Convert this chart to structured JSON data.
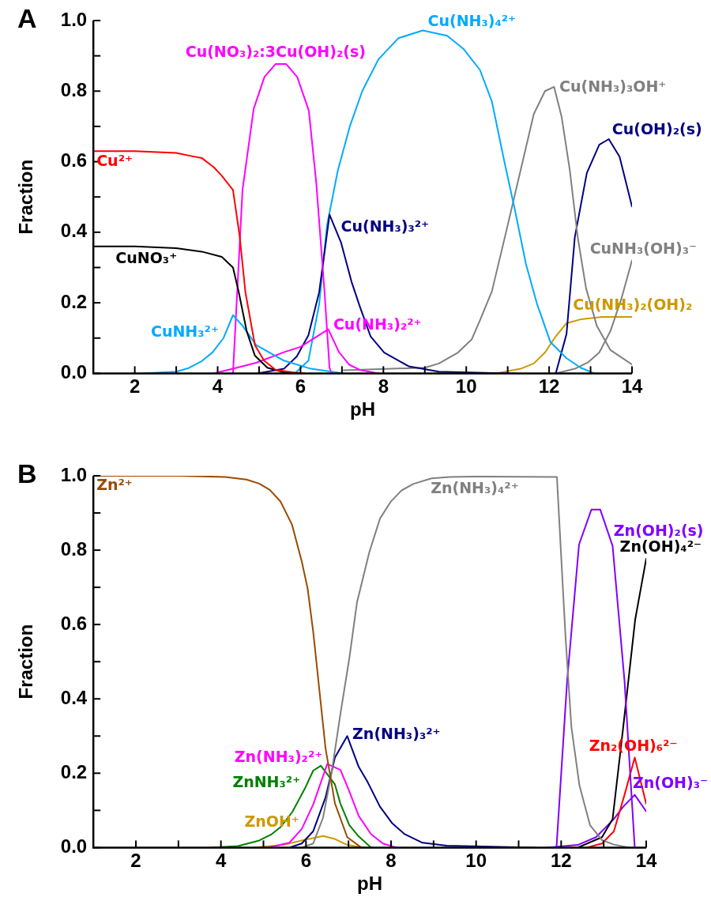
{
  "chart_data": [
    {
      "type": "line",
      "title": "A",
      "xlabel": "pH",
      "ylabel": "Fraction",
      "xlim": [
        1,
        14
      ],
      "ylim": [
        0,
        1
      ],
      "marker": "none",
      "legend": false,
      "xticks": [
        2,
        {
          "value": 3,
          "label": null
        },
        4,
        {
          "value": 5,
          "label": null
        },
        6,
        {
          "value": 7,
          "label": null
        },
        8,
        {
          "value": 9,
          "label": null
        },
        10,
        {
          "value": 11,
          "label": null
        },
        12,
        {
          "value": 13,
          "label": null
        },
        14
      ],
      "yticks": [
        {
          "value": 0,
          "label": "0.0"
        },
        {
          "value": 0.1,
          "label": null
        },
        {
          "value": 0.2,
          "label": "0.2"
        },
        {
          "value": 0.3,
          "label": null
        },
        {
          "value": 0.4,
          "label": "0.4"
        },
        {
          "value": 0.5,
          "label": null
        },
        {
          "value": 0.6,
          "label": "0.6"
        },
        {
          "value": 0.7,
          "label": null
        },
        {
          "value": 0.8,
          "label": "0.8"
        },
        {
          "value": 0.9,
          "label": null
        },
        {
          "value": 1,
          "label": "1.0"
        }
      ],
      "series": [
        {
          "name": "Cu²⁺",
          "color": "#ff0000",
          "x": [
            1,
            2,
            3,
            3.4,
            3.62,
            3.9,
            4.1,
            4.37,
            4.53,
            4.67,
            4.9,
            5.12,
            5.4,
            5.8,
            6.1
          ],
          "values": [
            0.63,
            0.63,
            0.625,
            0.615,
            0.61,
            0.585,
            0.56,
            0.52,
            0.39,
            0.23,
            0.08,
            0.036,
            0.01,
            0.003,
            0
          ]
        },
        {
          "name": "CuNO₃⁺",
          "color": "#000000",
          "x": [
            1,
            2,
            3,
            3.62,
            4.1,
            4.37,
            4.51,
            4.7,
            4.9,
            5.2,
            5.6,
            6.0
          ],
          "values": [
            0.36,
            0.36,
            0.355,
            0.345,
            0.33,
            0.3,
            0.23,
            0.12,
            0.05,
            0.016,
            0.003,
            0
          ]
        },
        {
          "name": "CuNH₃²⁺",
          "color": "#00aaff",
          "x": [
            2.2,
            3,
            3.3,
            3.62,
            3.88,
            4.14,
            4.37,
            4.6,
            4.93,
            5.6,
            6.25,
            7.05
          ],
          "values": [
            0,
            0.005,
            0.015,
            0.035,
            0.06,
            0.1,
            0.165,
            0.135,
            0.08,
            0.036,
            0.013,
            0
          ]
        },
        {
          "name": "Cu(NO₃)₂:3Cu(OH)₂(s)",
          "color": "#ff00ff",
          "x": [
            4.37,
            4.6,
            4.87,
            5.13,
            5.4,
            5.65,
            5.92,
            6.2,
            6.38,
            6.58,
            6.7,
            6.75
          ],
          "values": [
            0,
            0.52,
            0.75,
            0.84,
            0.877,
            0.877,
            0.84,
            0.745,
            0.54,
            0.23,
            0.016,
            0
          ]
        },
        {
          "name": "Cu(NH₃)₂²⁺",
          "color": "#ff00ff",
          "x": [
            3.9,
            4.37,
            4.93,
            5.6,
            6.0,
            6.67,
            6.93,
            7.17,
            7.43,
            7.88
          ],
          "values": [
            0,
            0.013,
            0.03,
            0.06,
            0.075,
            0.125,
            0.06,
            0.025,
            0.01,
            0
          ]
        },
        {
          "name": "Cu(NH₃)₃²⁺",
          "color": "#000080",
          "x": [
            4.96,
            5.6,
            5.91,
            6.19,
            6.45,
            6.7,
            6.98,
            7.23,
            7.43,
            7.69,
            8.02,
            8.61,
            9.34,
            10.98,
            11.18
          ],
          "values": [
            0,
            0.013,
            0.048,
            0.108,
            0.23,
            0.45,
            0.37,
            0.26,
            0.19,
            0.105,
            0.059,
            0.02,
            0.005,
            0,
            0
          ]
        },
        {
          "name": "Cu(NH₃)₄²⁺",
          "color": "#00aaff",
          "x": [
            5.91,
            6.19,
            6.45,
            6.64,
            6.9,
            7.19,
            7.49,
            7.88,
            8.36,
            8.95,
            9.54,
            9.93,
            10.33,
            10.62,
            10.92,
            11.18,
            11.44,
            11.71,
            12.03,
            12.42,
            12.76,
            13.09
          ],
          "values": [
            0.005,
            0.036,
            0.196,
            0.42,
            0.575,
            0.7,
            0.8,
            0.89,
            0.95,
            0.972,
            0.957,
            0.92,
            0.86,
            0.77,
            0.6,
            0.46,
            0.31,
            0.196,
            0.089,
            0.043,
            0.016,
            0
          ]
        },
        {
          "name": "Cu(NH₃)₃OH⁺",
          "color": "#808080",
          "x": [
            7.04,
            9.0,
            9.34,
            9.8,
            10.13,
            10.33,
            10.62,
            10.98,
            11.31,
            11.63,
            11.9,
            12.12,
            12.3,
            12.5,
            12.69,
            12.89,
            13.15,
            13.48,
            14
          ],
          "values": [
            0.009,
            0.016,
            0.028,
            0.059,
            0.096,
            0.15,
            0.233,
            0.41,
            0.575,
            0.735,
            0.8,
            0.812,
            0.728,
            0.575,
            0.386,
            0.242,
            0.135,
            0.066,
            0.025
          ]
        },
        {
          "name": "Cu(OH)₂(s)",
          "color": "#000080",
          "x": [
            12.16,
            12.3,
            12.42,
            12.62,
            12.91,
            13.21,
            13.44,
            13.7,
            14
          ],
          "values": [
            0,
            0.06,
            0.112,
            0.386,
            0.568,
            0.648,
            0.664,
            0.614,
            0.473
          ]
        },
        {
          "name": "CuNH₃(OH)₃⁻",
          "color": "#808080",
          "x": [
            12.16,
            12.62,
            12.95,
            13.21,
            13.48,
            13.74,
            14
          ],
          "values": [
            0,
            0.013,
            0.032,
            0.059,
            0.12,
            0.21,
            0.32
          ]
        },
        {
          "name": "Cu(NH₃)₂(OH)₂",
          "color": "#cc9900",
          "x": [
            10.72,
            11.31,
            11.63,
            11.9,
            12.16,
            12.42,
            12.76,
            13.28,
            14
          ],
          "values": [
            0,
            0.013,
            0.028,
            0.059,
            0.105,
            0.142,
            0.153,
            0.16,
            0.16
          ]
        }
      ]
    },
    {
      "type": "line",
      "title": "B",
      "xlabel": "pH",
      "ylabel": "Fraction",
      "xlim": [
        1,
        14
      ],
      "ylim": [
        0,
        1
      ],
      "marker": "none",
      "legend": false,
      "xticks": [
        2,
        {
          "value": 3,
          "label": null
        },
        4,
        {
          "value": 5,
          "label": null
        },
        6,
        {
          "value": 7,
          "label": null
        },
        8,
        {
          "value": 9,
          "label": null
        },
        10,
        {
          "value": 11,
          "label": null
        },
        12,
        {
          "value": 13,
          "label": null
        },
        14
      ],
      "yticks": [
        {
          "value": 0,
          "label": "0.0"
        },
        {
          "value": 0.1,
          "label": null
        },
        {
          "value": 0.2,
          "label": "0.2"
        },
        {
          "value": 0.3,
          "label": null
        },
        {
          "value": 0.4,
          "label": "0.4"
        },
        {
          "value": 0.5,
          "label": null
        },
        {
          "value": 0.6,
          "label": "0.6"
        },
        {
          "value": 0.7,
          "label": null
        },
        {
          "value": 0.8,
          "label": "0.8"
        },
        {
          "value": 0.9,
          "label": null
        },
        {
          "value": 1,
          "label": "1.0"
        }
      ],
      "series": [
        {
          "name": "Zn²⁺",
          "color": "#994c00",
          "x": [
            1,
            2,
            3,
            4.1,
            4.6,
            4.9,
            5.15,
            5.4,
            5.67,
            5.9,
            6.04,
            6.17,
            6.33,
            6.46,
            6.68,
            6.97,
            7.3
          ],
          "values": [
            1,
            1,
            1,
            0.997,
            0.99,
            0.979,
            0.962,
            0.931,
            0.869,
            0.77,
            0.696,
            0.58,
            0.407,
            0.267,
            0.119,
            0.028,
            0
          ]
        },
        {
          "name": "Zn(NH₃)₄²⁺",
          "color": "#808080",
          "x": [
            5.9,
            6.17,
            6.4,
            6.6,
            6.81,
            7.02,
            7.2,
            7.49,
            7.74,
            7.99,
            8.24,
            8.52,
            8.95,
            9.38,
            10,
            11.9,
            12.1,
            12.24,
            12.43,
            12.68,
            12.96,
            13.24,
            13.6
          ],
          "values": [
            0,
            0.011,
            0.08,
            0.2,
            0.36,
            0.51,
            0.66,
            0.795,
            0.885,
            0.93,
            0.96,
            0.978,
            0.993,
            0.997,
            0.998,
            0.997,
            0.572,
            0.325,
            0.167,
            0.06,
            0.02,
            0.008,
            0
          ]
        },
        {
          "name": "Zn(OH)₂(s)",
          "color": "#8000ff",
          "x": [
            11.67,
            11.89,
            12.14,
            12.42,
            12.71,
            12.92,
            13.21,
            13.49,
            13.73
          ],
          "values": [
            0,
            0,
            0.448,
            0.815,
            0.909,
            0.909,
            0.811,
            0.448,
            0
          ]
        },
        {
          "name": "Zn(OH)₄²⁻",
          "color": "#000000",
          "x": [
            12.39,
            12.96,
            13.21,
            13.46,
            13.74,
            14
          ],
          "values": [
            0,
            0.028,
            0.077,
            0.325,
            0.613,
            0.777
          ]
        },
        {
          "name": "Zn(NH₃)₃²⁺",
          "color": "#000080",
          "x": [
            5.61,
            5.9,
            6.17,
            6.46,
            6.68,
            6.97,
            7.24,
            7.45,
            7.74,
            8.03,
            8.32,
            8.74,
            9.31,
            11.39
          ],
          "values": [
            0,
            0.011,
            0.044,
            0.135,
            0.242,
            0.3,
            0.217,
            0.176,
            0.11,
            0.065,
            0.036,
            0.013,
            0.005,
            0
          ]
        },
        {
          "name": "Zn(NH₃)₂²⁺",
          "color": "#ff00ff",
          "x": [
            5.11,
            5.61,
            5.9,
            6.17,
            6.5,
            6.81,
            7.02,
            7.24,
            7.53,
            7.81,
            8.13
          ],
          "values": [
            0,
            0.013,
            0.05,
            0.116,
            0.225,
            0.209,
            0.151,
            0.085,
            0.036,
            0.011,
            0
          ]
        },
        {
          "name": "ZnNH₃²⁺",
          "color": "#008000",
          "x": [
            3.75,
            4.4,
            4.9,
            5.18,
            5.4,
            5.68,
            5.97,
            6.17,
            6.35,
            6.68,
            6.81,
            7.02,
            7.24,
            7.53
          ],
          "values": [
            0,
            0.004,
            0.019,
            0.035,
            0.055,
            0.096,
            0.158,
            0.207,
            0.22,
            0.17,
            0.118,
            0.06,
            0.03,
            0
          ]
        },
        {
          "name": "ZnOH⁺",
          "color": "#cc9900",
          "x": [
            4.75,
            5.46,
            5.9,
            6.4,
            6.68,
            6.97,
            7.35
          ],
          "values": [
            0,
            0.007,
            0.019,
            0.031,
            0.023,
            0.007,
            0
          ]
        },
        {
          "name": "Zn₂(OH)₆²⁻",
          "color": "#ff0000",
          "x": [
            12.6,
            12.96,
            13.24,
            13.49,
            13.73,
            14
          ],
          "values": [
            0,
            0.011,
            0.044,
            0.142,
            0.242,
            0.118
          ]
        },
        {
          "name": "Zn(OH)₃⁻",
          "color": "#8000ff",
          "x": [
            11.67,
            12.39,
            12.82,
            13.24,
            13.46,
            13.73,
            14
          ],
          "values": [
            0,
            0.007,
            0.028,
            0.077,
            0.11,
            0.142,
            0.097
          ]
        }
      ]
    }
  ]
}
